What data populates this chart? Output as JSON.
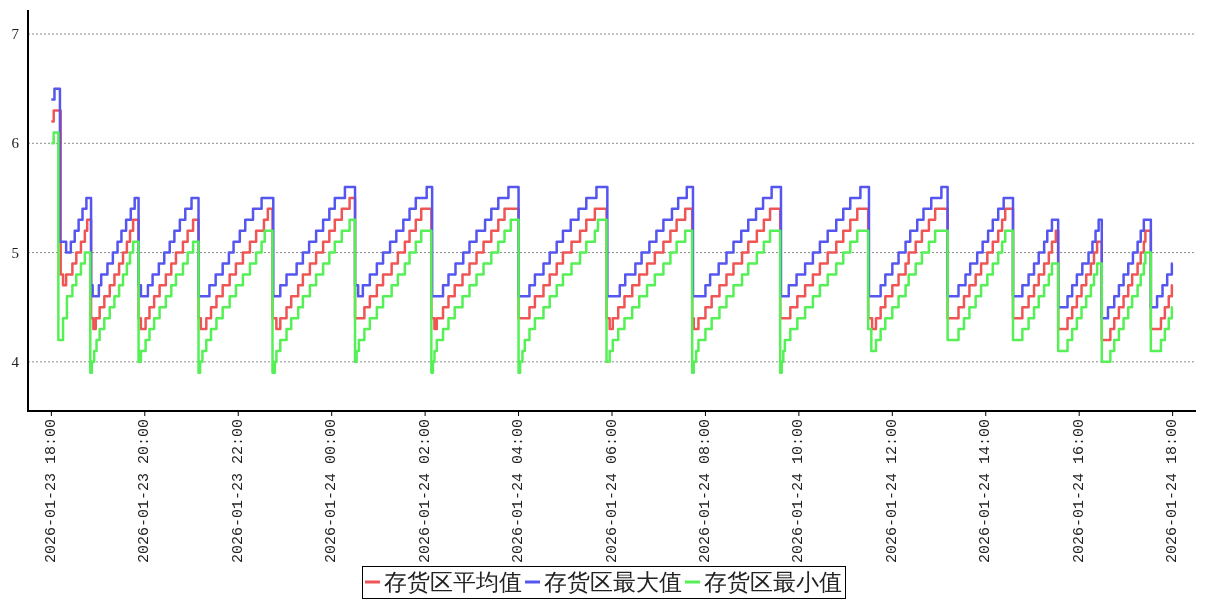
{
  "chart_data": {
    "type": "step",
    "xlim": [
      "2026-01-23T17:30",
      "2026-01-24T18:30"
    ],
    "ylim": [
      3.55,
      7.22
    ],
    "xticks": [
      {
        "value": "2026-01-23T18:00",
        "label": "2026-01-23 18:00"
      },
      {
        "value": "2026-01-23T20:00",
        "label": "2026-01-23 20:00"
      },
      {
        "value": "2026-01-23T22:00",
        "label": "2026-01-23 22:00"
      },
      {
        "value": "2026-01-24T00:00",
        "label": "2026-01-24 00:00"
      },
      {
        "value": "2026-01-24T02:00",
        "label": "2026-01-24 02:00"
      },
      {
        "value": "2026-01-24T04:00",
        "label": "2026-01-24 04:00"
      },
      {
        "value": "2026-01-24T06:00",
        "label": "2026-01-24 06:00"
      },
      {
        "value": "2026-01-24T08:00",
        "label": "2026-01-24 08:00"
      },
      {
        "value": "2026-01-24T10:00",
        "label": "2026-01-24 10:00"
      },
      {
        "value": "2026-01-24T12:00",
        "label": "2026-01-24 12:00"
      },
      {
        "value": "2026-01-24T14:00",
        "label": "2026-01-24 14:00"
      },
      {
        "value": "2026-01-24T16:00",
        "label": "2026-01-24 16:00"
      },
      {
        "value": "2026-01-24T18:00",
        "label": "2026-01-24 18:00"
      }
    ],
    "yticks": [
      4,
      5,
      6,
      7
    ],
    "grid": "y",
    "legend": "bottom",
    "series": [
      {
        "name": "存货区平均值",
        "color": "#f05555",
        "x": [
          "2026-01-23T18:00",
          "2026-01-23T18:03",
          "2026-01-23T18:12",
          "2026-01-23T18:15",
          "2026-01-23T18:19",
          "2026-01-23T18:27",
          "2026-01-23T18:32",
          "2026-01-23T18:38",
          "2026-01-23T18:43",
          "2026-01-23T18:46",
          "2026-01-23T18:51",
          "2026-01-23T18:54",
          "2026-01-23T18:57",
          "2026-01-23T19:02",
          "2026-01-23T19:08",
          "2026-01-23T19:15",
          "2026-01-23T19:21",
          "2026-01-23T19:27",
          "2026-01-23T19:32",
          "2026-01-23T19:37",
          "2026-01-23T19:41",
          "2026-01-23T19:45",
          "2026-01-23T19:52",
          "2026-01-23T19:55",
          "2026-01-23T20:01",
          "2026-01-23T20:06",
          "2026-01-23T20:12",
          "2026-01-23T20:19",
          "2026-01-23T20:27",
          "2026-01-23T20:34",
          "2026-01-23T20:40",
          "2026-01-23T20:49",
          "2026-01-23T20:55",
          "2026-01-23T21:02",
          "2026-01-23T21:09",
          "2026-01-23T21:12",
          "2026-01-23T21:19",
          "2026-01-23T21:25",
          "2026-01-23T21:32",
          "2026-01-23T21:40",
          "2026-01-23T21:49",
          "2026-01-23T21:57",
          "2026-01-23T22:06",
          "2026-01-23T22:15",
          "2026-01-23T22:23",
          "2026-01-23T22:33",
          "2026-01-23T22:38",
          "2026-01-23T22:44",
          "2026-01-23T22:49",
          "2026-01-23T22:54",
          "2026-01-23T23:02",
          "2026-01-23T23:08",
          "2026-01-23T23:17",
          "2026-01-23T23:23",
          "2026-01-23T23:32",
          "2026-01-23T23:40",
          "2026-01-23T23:49",
          "2026-01-23T23:57",
          "2026-01-24T00:04",
          "2026-01-24T00:13",
          "2026-01-24T00:23",
          "2026-01-24T00:30",
          "2026-01-24T00:42",
          "2026-01-24T00:49",
          "2026-01-24T00:58",
          "2026-01-24T01:06",
          "2026-01-24T01:17",
          "2026-01-24T01:25",
          "2026-01-24T01:34",
          "2026-01-24T01:40",
          "2026-01-24T01:48",
          "2026-01-24T01:55",
          "2026-01-24T02:08",
          "2026-01-24T02:12",
          "2026-01-24T02:15",
          "2026-01-24T02:23",
          "2026-01-24T02:30",
          "2026-01-24T02:38",
          "2026-01-24T02:48",
          "2026-01-24T02:57",
          "2026-01-24T03:06",
          "2026-01-24T03:15",
          "2026-01-24T03:25",
          "2026-01-24T03:34",
          "2026-01-24T03:42",
          "2026-01-24T04:00",
          "2026-01-24T04:14",
          "2026-01-24T04:21",
          "2026-01-24T04:32",
          "2026-01-24T04:40",
          "2026-01-24T04:49",
          "2026-01-24T04:57",
          "2026-01-24T05:08",
          "2026-01-24T05:19",
          "2026-01-24T05:27",
          "2026-01-24T05:38",
          "2026-01-24T05:53",
          "2026-01-24T05:57",
          "2026-01-24T06:01",
          "2026-01-24T06:08",
          "2026-01-24T06:16",
          "2026-01-24T06:26",
          "2026-01-24T06:35",
          "2026-01-24T06:45",
          "2026-01-24T06:55",
          "2026-01-24T07:06",
          "2026-01-24T07:15",
          "2026-01-24T07:23",
          "2026-01-24T07:34",
          "2026-01-24T07:43",
          "2026-01-24T07:45",
          "2026-01-24T07:51",
          "2026-01-24T08:00",
          "2026-01-24T08:08",
          "2026-01-24T08:18",
          "2026-01-24T08:27",
          "2026-01-24T08:36",
          "2026-01-24T08:47",
          "2026-01-24T08:55",
          "2026-01-24T09:06",
          "2026-01-24T09:15",
          "2026-01-24T09:23",
          "2026-01-24T09:36",
          "2026-01-24T09:49",
          "2026-01-24T09:58",
          "2026-01-24T10:08",
          "2026-01-24T10:18",
          "2026-01-24T10:27",
          "2026-01-24T10:37",
          "2026-01-24T10:48",
          "2026-01-24T10:57",
          "2026-01-24T11:06",
          "2026-01-24T11:15",
          "2026-01-24T11:29",
          "2026-01-24T11:34",
          "2026-01-24T11:39",
          "2026-01-24T11:45",
          "2026-01-24T11:51",
          "2026-01-24T12:00",
          "2026-01-24T12:08",
          "2026-01-24T12:17",
          "2026-01-24T12:21",
          "2026-01-24T12:30",
          "2026-01-24T12:38",
          "2026-01-24T12:47",
          "2026-01-24T12:55",
          "2026-01-24T13:11",
          "2026-01-24T13:25",
          "2026-01-24T13:32",
          "2026-01-24T13:39",
          "2026-01-24T13:47",
          "2026-01-24T13:54",
          "2026-01-24T14:02",
          "2026-01-24T14:09",
          "2026-01-24T14:16",
          "2026-01-24T14:21",
          "2026-01-24T14:25",
          "2026-01-24T14:35",
          "2026-01-24T14:47",
          "2026-01-24T14:55",
          "2026-01-24T15:02",
          "2026-01-24T15:08",
          "2026-01-24T15:15",
          "2026-01-24T15:21",
          "2026-01-24T15:25",
          "2026-01-24T15:30",
          "2026-01-24T15:33",
          "2026-01-24T15:45",
          "2026-01-24T15:51",
          "2026-01-24T15:57",
          "2026-01-24T16:03",
          "2026-01-24T16:09",
          "2026-01-24T16:15",
          "2026-01-24T16:19",
          "2026-01-24T16:23",
          "2026-01-24T16:29",
          "2026-01-24T16:40",
          "2026-01-24T16:45",
          "2026-01-24T16:51",
          "2026-01-24T16:57",
          "2026-01-24T17:03",
          "2026-01-24T17:08",
          "2026-01-24T17:15",
          "2026-01-24T17:19",
          "2026-01-24T17:23",
          "2026-01-24T17:25",
          "2026-01-24T17:32",
          "2026-01-24T17:45",
          "2026-01-24T17:50",
          "2026-01-24T17:55",
          "2026-01-24T17:59",
          "2026-01-24T18:00"
        ],
        "values": [
          6.2,
          6.3,
          4.8,
          4.7,
          4.8,
          4.9,
          5.0,
          5.1,
          5.2,
          5.3,
          4.4,
          4.3,
          4.4,
          4.5,
          4.6,
          4.7,
          4.8,
          4.9,
          5.0,
          5.1,
          5.2,
          5.3,
          4.4,
          4.3,
          4.4,
          4.5,
          4.6,
          4.7,
          4.8,
          4.9,
          5.0,
          5.1,
          5.2,
          5.3,
          4.4,
          4.3,
          4.4,
          4.5,
          4.6,
          4.7,
          4.8,
          4.9,
          5.0,
          5.1,
          5.2,
          5.3,
          5.4,
          4.4,
          4.3,
          4.4,
          4.5,
          4.6,
          4.7,
          4.8,
          4.9,
          5.0,
          5.1,
          5.2,
          5.3,
          5.4,
          5.5,
          4.4,
          4.5,
          4.6,
          4.7,
          4.8,
          4.9,
          5.0,
          5.1,
          5.2,
          5.3,
          5.4,
          4.4,
          4.3,
          4.4,
          4.5,
          4.6,
          4.7,
          4.8,
          4.9,
          5.0,
          5.1,
          5.2,
          5.3,
          5.4,
          4.4,
          4.5,
          4.6,
          4.7,
          4.8,
          4.9,
          5.0,
          5.1,
          5.2,
          5.3,
          5.4,
          4.4,
          4.3,
          4.4,
          4.5,
          4.6,
          4.7,
          4.8,
          4.9,
          5.0,
          5.1,
          5.2,
          5.3,
          5.4,
          4.4,
          4.3,
          4.4,
          4.5,
          4.6,
          4.7,
          4.8,
          4.9,
          5.0,
          5.1,
          5.2,
          5.3,
          5.4,
          4.4,
          4.5,
          4.6,
          4.7,
          4.8,
          4.9,
          5.0,
          5.1,
          5.2,
          5.3,
          5.4,
          4.4,
          4.3,
          4.4,
          4.5,
          4.6,
          4.7,
          4.8,
          4.9,
          5.0,
          5.1,
          5.2,
          5.3,
          5.4,
          4.4,
          4.5,
          4.6,
          4.7,
          4.8,
          4.9,
          5.0,
          5.1,
          5.2,
          5.3,
          5.4,
          4.4,
          4.5,
          4.6,
          4.7,
          4.8,
          4.9,
          5.0,
          5.1,
          5.2,
          4.3,
          4.4,
          4.5,
          4.6,
          4.7,
          4.8,
          4.9,
          5.0,
          5.1,
          4.2,
          4.3,
          4.4,
          4.5,
          4.6,
          4.7,
          4.8,
          4.9,
          5.0,
          5.1,
          5.2,
          4.3,
          4.4,
          4.5,
          4.6,
          4.7,
          4.7
        ]
      },
      {
        "name": "存货区最大值",
        "color": "#5555f0",
        "x": [
          "2026-01-23T18:00",
          "2026-01-23T18:04",
          "2026-01-23T18:11",
          "2026-01-23T18:19",
          "2026-01-23T18:25",
          "2026-01-23T18:30",
          "2026-01-23T18:35",
          "2026-01-23T18:40",
          "2026-01-23T18:45",
          "2026-01-23T18:51",
          "2026-01-23T18:53",
          "2026-01-23T19:01",
          "2026-01-23T19:04",
          "2026-01-23T19:12",
          "2026-01-23T19:19",
          "2026-01-23T19:25",
          "2026-01-23T19:30",
          "2026-01-23T19:36",
          "2026-01-23T19:42",
          "2026-01-23T19:47",
          "2026-01-23T19:52",
          "2026-01-23T19:55",
          "2026-01-23T20:04",
          "2026-01-23T20:10",
          "2026-01-23T20:18",
          "2026-01-23T20:25",
          "2026-01-23T20:32",
          "2026-01-23T20:38",
          "2026-01-23T20:45",
          "2026-01-23T20:52",
          "2026-01-23T21:00",
          "2026-01-23T21:09",
          "2026-01-23T21:23",
          "2026-01-23T21:31",
          "2026-01-23T21:40",
          "2026-01-23T21:48",
          "2026-01-23T21:54",
          "2026-01-23T22:02",
          "2026-01-23T22:09",
          "2026-01-23T22:19",
          "2026-01-23T22:30",
          "2026-01-23T22:45",
          "2026-01-23T22:54",
          "2026-01-23T23:02",
          "2026-01-23T23:15",
          "2026-01-23T23:23",
          "2026-01-23T23:31",
          "2026-01-23T23:40",
          "2026-01-23T23:49",
          "2026-01-23T23:57",
          "2026-01-24T00:04",
          "2026-01-24T00:17",
          "2026-01-24T00:30",
          "2026-01-24T00:34",
          "2026-01-24T00:40",
          "2026-01-24T00:49",
          "2026-01-24T00:58",
          "2026-01-24T01:06",
          "2026-01-24T01:15",
          "2026-01-24T01:23",
          "2026-01-24T01:32",
          "2026-01-24T01:40",
          "2026-01-24T01:48",
          "2026-01-24T02:02",
          "2026-01-24T02:09",
          "2026-01-24T02:23",
          "2026-01-24T02:30",
          "2026-01-24T02:39",
          "2026-01-24T02:49",
          "2026-01-24T02:57",
          "2026-01-24T03:06",
          "2026-01-24T03:17",
          "2026-01-24T03:25",
          "2026-01-24T03:34",
          "2026-01-24T03:47",
          "2026-01-24T04:00",
          "2026-01-24T04:14",
          "2026-01-24T04:21",
          "2026-01-24T04:32",
          "2026-01-24T04:40",
          "2026-01-24T04:49",
          "2026-01-24T04:57",
          "2026-01-24T05:07",
          "2026-01-24T05:17",
          "2026-01-24T05:27",
          "2026-01-24T05:40",
          "2026-01-24T05:54",
          "2026-01-24T06:10",
          "2026-01-24T06:17",
          "2026-01-24T06:30",
          "2026-01-24T06:38",
          "2026-01-24T06:48",
          "2026-01-24T06:57",
          "2026-01-24T07:06",
          "2026-01-24T07:17",
          "2026-01-24T07:25",
          "2026-01-24T07:36",
          "2026-01-24T07:44",
          "2026-01-24T08:00",
          "2026-01-24T08:06",
          "2026-01-24T08:17",
          "2026-01-24T08:27",
          "2026-01-24T08:36",
          "2026-01-24T08:46",
          "2026-01-24T08:55",
          "2026-01-24T09:05",
          "2026-01-24T09:14",
          "2026-01-24T09:25",
          "2026-01-24T09:37",
          "2026-01-24T09:47",
          "2026-01-24T09:57",
          "2026-01-24T10:08",
          "2026-01-24T10:18",
          "2026-01-24T10:27",
          "2026-01-24T10:37",
          "2026-01-24T10:48",
          "2026-01-24T10:57",
          "2026-01-24T11:06",
          "2026-01-24T11:19",
          "2026-01-24T11:30",
          "2026-01-24T11:45",
          "2026-01-24T11:51",
          "2026-01-24T12:00",
          "2026-01-24T12:08",
          "2026-01-24T12:17",
          "2026-01-24T12:23",
          "2026-01-24T12:32",
          "2026-01-24T12:40",
          "2026-01-24T12:50",
          "2026-01-24T13:03",
          "2026-01-24T13:11",
          "2026-01-24T13:25",
          "2026-01-24T13:34",
          "2026-01-24T13:40",
          "2026-01-24T13:49",
          "2026-01-24T13:56",
          "2026-01-24T14:03",
          "2026-01-24T14:09",
          "2026-01-24T14:16",
          "2026-01-24T14:23",
          "2026-01-24T14:35",
          "2026-01-24T14:47",
          "2026-01-24T14:55",
          "2026-01-24T15:02",
          "2026-01-24T15:08",
          "2026-01-24T15:15",
          "2026-01-24T15:19",
          "2026-01-24T15:25",
          "2026-01-24T15:33",
          "2026-01-24T15:45",
          "2026-01-24T15:51",
          "2026-01-24T15:57",
          "2026-01-24T16:04",
          "2026-01-24T16:12",
          "2026-01-24T16:17",
          "2026-01-24T16:21",
          "2026-01-24T16:25",
          "2026-01-24T16:29",
          "2026-01-24T16:37",
          "2026-01-24T16:45",
          "2026-01-24T16:51",
          "2026-01-24T16:57",
          "2026-01-24T17:03",
          "2026-01-24T17:09",
          "2026-01-24T17:15",
          "2026-01-24T17:19",
          "2026-01-24T17:23",
          "2026-01-24T17:32",
          "2026-01-24T17:40",
          "2026-01-24T17:47",
          "2026-01-24T17:53",
          "2026-01-24T17:59",
          "2026-01-24T18:00"
        ],
        "values": [
          6.4,
          6.5,
          5.1,
          5.0,
          5.1,
          5.2,
          5.3,
          5.4,
          5.5,
          4.7,
          4.6,
          4.7,
          4.8,
          4.9,
          5.0,
          5.1,
          5.2,
          5.3,
          5.4,
          5.5,
          4.7,
          4.6,
          4.7,
          4.8,
          4.9,
          5.0,
          5.1,
          5.2,
          5.3,
          5.4,
          5.5,
          4.6,
          4.7,
          4.8,
          4.9,
          5.0,
          5.1,
          5.2,
          5.3,
          5.4,
          5.5,
          4.6,
          4.7,
          4.8,
          4.9,
          5.0,
          5.1,
          5.2,
          5.3,
          5.4,
          5.5,
          5.6,
          4.7,
          4.6,
          4.7,
          4.8,
          4.9,
          5.0,
          5.1,
          5.2,
          5.3,
          5.4,
          5.5,
          5.6,
          4.6,
          4.7,
          4.8,
          4.9,
          5.0,
          5.1,
          5.2,
          5.3,
          5.4,
          5.5,
          5.6,
          4.6,
          4.7,
          4.8,
          4.9,
          5.0,
          5.1,
          5.2,
          5.3,
          5.4,
          5.5,
          5.6,
          4.6,
          4.7,
          4.8,
          4.9,
          5.0,
          5.1,
          5.2,
          5.3,
          5.4,
          5.5,
          5.6,
          4.6,
          4.7,
          4.8,
          4.9,
          5.0,
          5.1,
          5.2,
          5.3,
          5.4,
          5.5,
          5.6,
          4.6,
          4.7,
          4.8,
          4.9,
          5.0,
          5.1,
          5.2,
          5.3,
          5.4,
          5.5,
          5.6,
          4.6,
          4.7,
          4.8,
          4.9,
          5.0,
          5.1,
          5.2,
          5.3,
          5.4,
          5.5,
          5.6,
          4.6,
          4.7,
          4.8,
          4.9,
          5.0,
          5.1,
          5.2,
          5.3,
          5.4,
          5.5,
          4.6,
          4.7,
          4.8,
          4.9,
          5.0,
          5.1,
          5.2,
          5.3,
          4.5,
          4.6,
          4.7,
          4.8,
          4.9,
          5.0,
          5.1,
          5.2,
          5.3,
          4.4,
          4.5,
          4.6,
          4.7,
          4.8,
          4.9,
          5.0,
          5.1,
          5.2,
          5.3,
          4.5,
          4.6,
          4.7,
          4.8,
          4.9,
          4.9
        ]
      },
      {
        "name": "存货区最小值",
        "color": "#55f055",
        "x": [
          "2026-01-23T18:00",
          "2026-01-23T18:03",
          "2026-01-23T18:09",
          "2026-01-23T18:15",
          "2026-01-23T18:20",
          "2026-01-23T18:27",
          "2026-01-23T18:32",
          "2026-01-23T18:38",
          "2026-01-23T18:43",
          "2026-01-23T18:50",
          "2026-01-23T18:52",
          "2026-01-23T18:55",
          "2026-01-23T18:58",
          "2026-01-23T19:02",
          "2026-01-23T19:08",
          "2026-01-23T19:15",
          "2026-01-23T19:21",
          "2026-01-23T19:27",
          "2026-01-23T19:32",
          "2026-01-23T19:37",
          "2026-01-23T19:41",
          "2026-01-23T19:45",
          "2026-01-23T19:52",
          "2026-01-23T19:55",
          "2026-01-23T20:01",
          "2026-01-23T20:06",
          "2026-01-23T20:12",
          "2026-01-23T20:19",
          "2026-01-23T20:27",
          "2026-01-23T20:34",
          "2026-01-23T20:40",
          "2026-01-23T20:49",
          "2026-01-23T20:55",
          "2026-01-23T21:02",
          "2026-01-23T21:09",
          "2026-01-23T21:11",
          "2026-01-23T21:14",
          "2026-01-23T21:19",
          "2026-01-23T21:25",
          "2026-01-23T21:32",
          "2026-01-23T21:40",
          "2026-01-23T21:49",
          "2026-01-23T21:57",
          "2026-01-23T22:06",
          "2026-01-23T22:15",
          "2026-01-23T22:23",
          "2026-01-23T22:30",
          "2026-01-23T22:34",
          "2026-01-23T22:44",
          "2026-01-23T22:47",
          "2026-01-23T22:49",
          "2026-01-23T22:54",
          "2026-01-23T23:02",
          "2026-01-23T23:08",
          "2026-01-23T23:17",
          "2026-01-23T23:23",
          "2026-01-23T23:32",
          "2026-01-23T23:40",
          "2026-01-23T23:49",
          "2026-01-23T23:57",
          "2026-01-24T00:04",
          "2026-01-24T00:13",
          "2026-01-24T00:23",
          "2026-01-24T00:30",
          "2026-01-24T00:32",
          "2026-01-24T00:35",
          "2026-01-24T00:42",
          "2026-01-24T00:49",
          "2026-01-24T00:58",
          "2026-01-24T01:06",
          "2026-01-24T01:17",
          "2026-01-24T01:25",
          "2026-01-24T01:34",
          "2026-01-24T01:40",
          "2026-01-24T01:48",
          "2026-01-24T01:55",
          "2026-01-24T02:08",
          "2026-01-24T02:10",
          "2026-01-24T02:12",
          "2026-01-24T02:15",
          "2026-01-24T02:23",
          "2026-01-24T02:30",
          "2026-01-24T02:38",
          "2026-01-24T02:48",
          "2026-01-24T02:57",
          "2026-01-24T03:06",
          "2026-01-24T03:15",
          "2026-01-24T03:25",
          "2026-01-24T03:34",
          "2026-01-24T03:42",
          "2026-01-24T03:50",
          "2026-01-24T04:00",
          "2026-01-24T04:02",
          "2026-01-24T04:05",
          "2026-01-24T04:08",
          "2026-01-24T04:14",
          "2026-01-24T04:21",
          "2026-01-24T04:32",
          "2026-01-24T04:40",
          "2026-01-24T04:49",
          "2026-01-24T04:57",
          "2026-01-24T05:08",
          "2026-01-24T05:19",
          "2026-01-24T05:27",
          "2026-01-24T05:38",
          "2026-01-24T05:42",
          "2026-01-24T05:53",
          "2026-01-24T05:57",
          "2026-01-24T06:01",
          "2026-01-24T06:08",
          "2026-01-24T06:16",
          "2026-01-24T06:26",
          "2026-01-24T06:35",
          "2026-01-24T06:45",
          "2026-01-24T06:55",
          "2026-01-24T07:06",
          "2026-01-24T07:15",
          "2026-01-24T07:23",
          "2026-01-24T07:34",
          "2026-01-24T07:43",
          "2026-01-24T07:45",
          "2026-01-24T07:48",
          "2026-01-24T07:51",
          "2026-01-24T08:00",
          "2026-01-24T08:08",
          "2026-01-24T08:18",
          "2026-01-24T08:27",
          "2026-01-24T08:36",
          "2026-01-24T08:47",
          "2026-01-24T08:55",
          "2026-01-24T09:06",
          "2026-01-24T09:15",
          "2026-01-24T09:23",
          "2026-01-24T09:36",
          "2026-01-24T09:38",
          "2026-01-24T09:40",
          "2026-01-24T09:42",
          "2026-01-24T09:49",
          "2026-01-24T09:58",
          "2026-01-24T10:08",
          "2026-01-24T10:18",
          "2026-01-24T10:27",
          "2026-01-24T10:37",
          "2026-01-24T10:48",
          "2026-01-24T10:57",
          "2026-01-24T11:06",
          "2026-01-24T11:15",
          "2026-01-24T11:29",
          "2026-01-24T11:33",
          "2026-01-24T11:39",
          "2026-01-24T11:45",
          "2026-01-24T11:51",
          "2026-01-24T12:00",
          "2026-01-24T12:08",
          "2026-01-24T12:17",
          "2026-01-24T12:21",
          "2026-01-24T12:30",
          "2026-01-24T12:38",
          "2026-01-24T12:47",
          "2026-01-24T12:55",
          "2026-01-24T13:11",
          "2026-01-24T13:25",
          "2026-01-24T13:32",
          "2026-01-24T13:39",
          "2026-01-24T13:47",
          "2026-01-24T13:54",
          "2026-01-24T14:02",
          "2026-01-24T14:09",
          "2026-01-24T14:16",
          "2026-01-24T14:21",
          "2026-01-24T14:25",
          "2026-01-24T14:35",
          "2026-01-24T14:47",
          "2026-01-24T14:55",
          "2026-01-24T15:02",
          "2026-01-24T15:08",
          "2026-01-24T15:15",
          "2026-01-24T15:21",
          "2026-01-24T15:25",
          "2026-01-24T15:33",
          "2026-01-24T15:45",
          "2026-01-24T15:51",
          "2026-01-24T15:57",
          "2026-01-24T16:03",
          "2026-01-24T16:09",
          "2026-01-24T16:15",
          "2026-01-24T16:19",
          "2026-01-24T16:23",
          "2026-01-24T16:29",
          "2026-01-24T16:40",
          "2026-01-24T16:45",
          "2026-01-24T16:51",
          "2026-01-24T16:57",
          "2026-01-24T17:03",
          "2026-01-24T17:08",
          "2026-01-24T17:15",
          "2026-01-24T17:19",
          "2026-01-24T17:23",
          "2026-01-24T17:25",
          "2026-01-24T17:32",
          "2026-01-24T17:45",
          "2026-01-24T17:50",
          "2026-01-24T17:55",
          "2026-01-24T17:59",
          "2026-01-24T18:00"
        ],
        "values": [
          6.0,
          6.1,
          4.2,
          4.4,
          4.6,
          4.7,
          4.8,
          4.9,
          5.0,
          3.9,
          4.0,
          4.1,
          4.2,
          4.3,
          4.4,
          4.5,
          4.6,
          4.7,
          4.8,
          4.9,
          5.0,
          5.1,
          4.0,
          4.1,
          4.2,
          4.3,
          4.4,
          4.5,
          4.6,
          4.7,
          4.8,
          4.9,
          5.0,
          5.1,
          3.9,
          4.0,
          4.1,
          4.2,
          4.3,
          4.4,
          4.5,
          4.6,
          4.7,
          4.8,
          4.9,
          5.0,
          5.1,
          5.2,
          3.9,
          4.0,
          4.1,
          4.2,
          4.3,
          4.4,
          4.5,
          4.6,
          4.7,
          4.8,
          4.9,
          5.0,
          5.1,
          5.2,
          5.3,
          4.0,
          4.1,
          4.2,
          4.3,
          4.4,
          4.5,
          4.6,
          4.7,
          4.8,
          4.9,
          5.0,
          5.1,
          5.2,
          3.9,
          4.0,
          4.1,
          4.2,
          4.3,
          4.4,
          4.5,
          4.6,
          4.7,
          4.8,
          4.9,
          5.0,
          5.1,
          5.2,
          5.3,
          3.9,
          4.0,
          4.1,
          4.2,
          4.3,
          4.4,
          4.5,
          4.6,
          4.7,
          4.8,
          4.9,
          5.0,
          5.1,
          5.2,
          5.3,
          4.0,
          4.1,
          4.2,
          4.3,
          4.4,
          4.5,
          4.6,
          4.7,
          4.8,
          4.9,
          5.0,
          5.1,
          5.2,
          3.9,
          4.0,
          4.1,
          4.2,
          4.3,
          4.4,
          4.5,
          4.6,
          4.7,
          4.8,
          4.9,
          5.0,
          5.1,
          5.2,
          3.9,
          4.0,
          4.1,
          4.2,
          4.3,
          4.4,
          4.5,
          4.6,
          4.7,
          4.8,
          4.9,
          5.0,
          5.1,
          5.2,
          4.3,
          4.1,
          4.2,
          4.3,
          4.4,
          4.5,
          4.6,
          4.7,
          4.8,
          4.9,
          5.0,
          5.1,
          5.2,
          4.2,
          4.3,
          4.4,
          4.5,
          4.6,
          4.7,
          4.8,
          4.9,
          5.0,
          5.1,
          5.2,
          4.2,
          4.3,
          4.4,
          4.5,
          4.6,
          4.7,
          4.8,
          4.9,
          4.1,
          4.2,
          4.3,
          4.4,
          4.5,
          4.6,
          4.7,
          4.8,
          4.9,
          4.0,
          4.1,
          4.2,
          4.3,
          4.4,
          4.5,
          4.6,
          4.7,
          4.8,
          4.9,
          5.0,
          4.1,
          4.2,
          4.3,
          4.4,
          4.5,
          4.5
        ]
      }
    ]
  }
}
